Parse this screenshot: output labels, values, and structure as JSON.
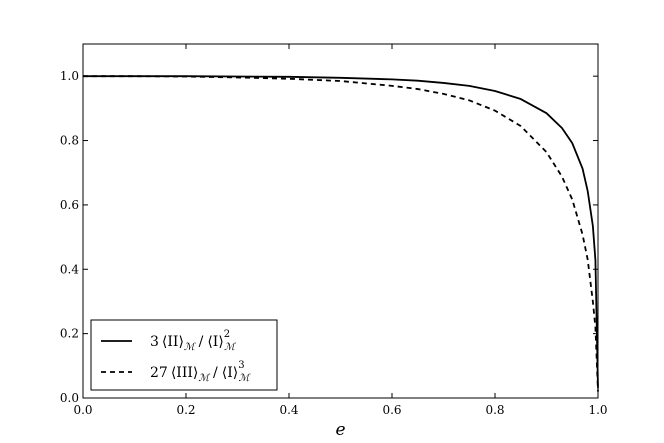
{
  "chart_data": {
    "type": "line",
    "title": "",
    "xlabel": "e",
    "ylabel": "",
    "xlim": [
      0.0,
      1.0
    ],
    "ylim": [
      0.0,
      1.1
    ],
    "xticks": [
      "0.0",
      "0.2",
      "0.4",
      "0.6",
      "0.8",
      "1.0"
    ],
    "yticks": [
      "0.0",
      "0.2",
      "0.4",
      "0.6",
      "0.8",
      "1.0"
    ],
    "grid": false,
    "legend_position": "bottom-left",
    "series": [
      {
        "name": "3⟨II⟩M / ⟨I⟩M²",
        "legend": {
          "coef": "3",
          "num": "⟨II⟩",
          "sub1": "ℳ",
          "den": "⟨I⟩",
          "sup": "2",
          "sub2": "ℳ"
        },
        "style": "solid",
        "color": "#000000",
        "x": [
          0.0,
          0.1,
          0.2,
          0.3,
          0.4,
          0.5,
          0.6,
          0.65,
          0.7,
          0.75,
          0.8,
          0.85,
          0.9,
          0.93,
          0.95,
          0.97,
          0.98,
          0.99,
          0.995,
          1.0
        ],
        "y": [
          1.0,
          1.0,
          1.0,
          0.999,
          0.998,
          0.995,
          0.99,
          0.986,
          0.979,
          0.97,
          0.954,
          0.929,
          0.885,
          0.839,
          0.792,
          0.713,
          0.643,
          0.535,
          0.428,
          0.03
        ]
      },
      {
        "name": "27⟨III⟩M / ⟨I⟩M³",
        "legend": {
          "coef": "27",
          "num": "⟨III⟩",
          "sub1": "ℳ",
          "den": "⟨I⟩",
          "sup": "3",
          "sub2": "ℳ"
        },
        "style": "dashed",
        "color": "#000000",
        "x": [
          0.0,
          0.1,
          0.2,
          0.3,
          0.4,
          0.5,
          0.6,
          0.65,
          0.7,
          0.75,
          0.8,
          0.85,
          0.9,
          0.93,
          0.95,
          0.97,
          0.98,
          0.99,
          0.995,
          1.0
        ],
        "y": [
          1.0,
          1.0,
          0.999,
          0.996,
          0.992,
          0.985,
          0.97,
          0.96,
          0.945,
          0.925,
          0.893,
          0.845,
          0.764,
          0.688,
          0.617,
          0.508,
          0.43,
          0.3,
          0.22,
          0.02
        ]
      }
    ]
  }
}
